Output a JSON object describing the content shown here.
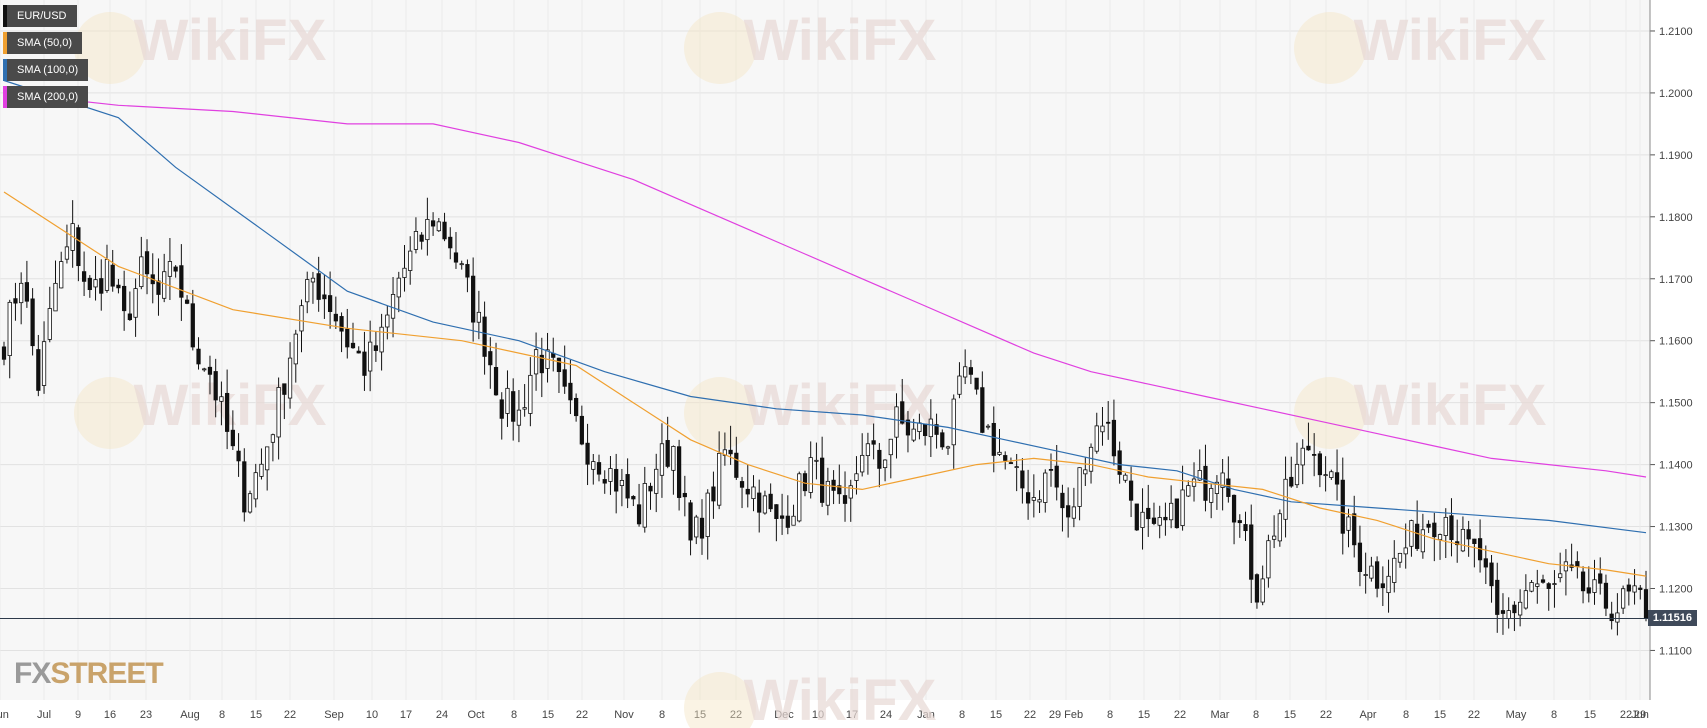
{
  "legend": {
    "symbol": "EUR/USD",
    "sma50": "SMA (50,0)",
    "sma100": "SMA (100,0)",
    "sma200": "SMA (200,0)"
  },
  "watermark": "WikiFX",
  "logo": {
    "fx": "FX",
    "street": "STREET"
  },
  "current_price_label": "1.11516",
  "colors": {
    "sma50": "#f0a030",
    "sma100": "#2f6fb0",
    "sma200": "#e040e0",
    "candle_up": "#ffffff",
    "candle_down": "#111111",
    "price_line": "#2d3a4a"
  },
  "chart_data": {
    "type": "candlestick",
    "title": "EUR/USD",
    "ylim": [
      1.102,
      1.215
    ],
    "y_ticks": [
      "1.1100",
      "1.1200",
      "1.1300",
      "1.1400",
      "1.1500",
      "1.1600",
      "1.1700",
      "1.1800",
      "1.1900",
      "1.2000",
      "1.2100"
    ],
    "x_ticks": [
      "Jun",
      "Jul",
      "9",
      "16",
      "23",
      "Aug",
      "8",
      "15",
      "22",
      "Sep",
      "10",
      "17",
      "24",
      "Oct",
      "8",
      "15",
      "22",
      "Nov",
      "8",
      "15",
      "22",
      "Dec",
      "10",
      "17",
      "24",
      "Jan",
      "8",
      "15",
      "22",
      "29 Feb",
      "8",
      "15",
      "22",
      "Mar",
      "8",
      "15",
      "22",
      "Apr",
      "8",
      "15",
      "22",
      "May",
      "8",
      "15",
      "22",
      "29",
      "Jun"
    ],
    "close_anchors": [
      [
        0,
        1.16
      ],
      [
        3,
        1.171
      ],
      [
        6,
        1.153
      ],
      [
        9,
        1.169
      ],
      [
        12,
        1.177
      ],
      [
        15,
        1.167
      ],
      [
        18,
        1.172
      ],
      [
        21,
        1.163
      ],
      [
        24,
        1.171
      ],
      [
        27,
        1.167
      ],
      [
        30,
        1.172
      ],
      [
        33,
        1.16
      ],
      [
        36,
        1.155
      ],
      [
        39,
        1.145
      ],
      [
        42,
        1.135
      ],
      [
        45,
        1.14
      ],
      [
        48,
        1.15
      ],
      [
        51,
        1.162
      ],
      [
        54,
        1.17
      ],
      [
        57,
        1.166
      ],
      [
        60,
        1.16
      ],
      [
        63,
        1.156
      ],
      [
        66,
        1.16
      ],
      [
        69,
        1.17
      ],
      [
        72,
        1.175
      ],
      [
        75,
        1.18
      ],
      [
        78,
        1.176
      ],
      [
        81,
        1.168
      ],
      [
        84,
        1.16
      ],
      [
        87,
        1.15
      ],
      [
        90,
        1.148
      ],
      [
        93,
        1.158
      ],
      [
        96,
        1.155
      ],
      [
        99,
        1.148
      ],
      [
        102,
        1.143
      ],
      [
        105,
        1.14
      ],
      [
        108,
        1.136
      ],
      [
        111,
        1.132
      ],
      [
        114,
        1.14
      ],
      [
        117,
        1.143
      ],
      [
        120,
        1.127
      ],
      [
        123,
        1.133
      ],
      [
        126,
        1.142
      ],
      [
        129,
        1.138
      ],
      [
        132,
        1.135
      ],
      [
        135,
        1.13
      ],
      [
        138,
        1.134
      ],
      [
        141,
        1.14
      ],
      [
        144,
        1.135
      ],
      [
        147,
        1.131
      ],
      [
        150,
        1.143
      ],
      [
        153,
        1.14
      ],
      [
        156,
        1.147
      ],
      [
        159,
        1.145
      ],
      [
        162,
        1.146
      ],
      [
        165,
        1.144
      ],
      [
        168,
        1.155
      ],
      [
        171,
        1.147
      ],
      [
        174,
        1.142
      ],
      [
        177,
        1.137
      ],
      [
        180,
        1.135
      ],
      [
        183,
        1.139
      ],
      [
        186,
        1.13
      ],
      [
        189,
        1.142
      ],
      [
        192,
        1.148
      ],
      [
        195,
        1.14
      ],
      [
        198,
        1.132
      ],
      [
        201,
        1.128
      ],
      [
        204,
        1.131
      ],
      [
        207,
        1.136
      ],
      [
        210,
        1.137
      ],
      [
        213,
        1.141
      ],
      [
        216,
        1.13
      ],
      [
        219,
        1.12
      ],
      [
        222,
        1.13
      ],
      [
        225,
        1.137
      ],
      [
        228,
        1.143
      ],
      [
        231,
        1.14
      ],
      [
        234,
        1.131
      ],
      [
        237,
        1.125
      ],
      [
        240,
        1.122
      ],
      [
        243,
        1.124
      ],
      [
        246,
        1.128
      ],
      [
        249,
        1.131
      ],
      [
        252,
        1.132
      ],
      [
        255,
        1.127
      ],
      [
        258,
        1.125
      ],
      [
        261,
        1.114
      ],
      [
        264,
        1.117
      ],
      [
        267,
        1.121
      ],
      [
        270,
        1.119
      ],
      [
        273,
        1.122
      ],
      [
        276,
        1.12
      ],
      [
        279,
        1.118
      ],
      [
        282,
        1.117
      ],
      [
        285,
        1.119
      ],
      [
        287,
        1.1152
      ]
    ],
    "sma50": [
      [
        0,
        1.184
      ],
      [
        20,
        1.172
      ],
      [
        40,
        1.165
      ],
      [
        60,
        1.162
      ],
      [
        80,
        1.16
      ],
      [
        100,
        1.156
      ],
      [
        110,
        1.15
      ],
      [
        120,
        1.144
      ],
      [
        130,
        1.14
      ],
      [
        140,
        1.137
      ],
      [
        150,
        1.136
      ],
      [
        160,
        1.138
      ],
      [
        170,
        1.14
      ],
      [
        180,
        1.141
      ],
      [
        190,
        1.14
      ],
      [
        200,
        1.138
      ],
      [
        210,
        1.137
      ],
      [
        220,
        1.136
      ],
      [
        230,
        1.133
      ],
      [
        240,
        1.131
      ],
      [
        250,
        1.128
      ],
      [
        260,
        1.126
      ],
      [
        270,
        1.124
      ],
      [
        280,
        1.123
      ],
      [
        287,
        1.122
      ]
    ],
    "sma100": [
      [
        0,
        1.202
      ],
      [
        20,
        1.196
      ],
      [
        30,
        1.188
      ],
      [
        45,
        1.178
      ],
      [
        60,
        1.168
      ],
      [
        75,
        1.163
      ],
      [
        90,
        1.16
      ],
      [
        105,
        1.155
      ],
      [
        120,
        1.151
      ],
      [
        135,
        1.149
      ],
      [
        150,
        1.148
      ],
      [
        165,
        1.146
      ],
      [
        175,
        1.144
      ],
      [
        185,
        1.142
      ],
      [
        195,
        1.14
      ],
      [
        205,
        1.139
      ],
      [
        215,
        1.136
      ],
      [
        225,
        1.134
      ],
      [
        240,
        1.133
      ],
      [
        255,
        1.132
      ],
      [
        270,
        1.131
      ],
      [
        287,
        1.129
      ]
    ],
    "sma200": [
      [
        0,
        1.2
      ],
      [
        20,
        1.198
      ],
      [
        40,
        1.197
      ],
      [
        60,
        1.195
      ],
      [
        75,
        1.195
      ],
      [
        90,
        1.192
      ],
      [
        100,
        1.189
      ],
      [
        110,
        1.186
      ],
      [
        120,
        1.182
      ],
      [
        130,
        1.178
      ],
      [
        140,
        1.174
      ],
      [
        150,
        1.17
      ],
      [
        160,
        1.166
      ],
      [
        170,
        1.162
      ],
      [
        180,
        1.158
      ],
      [
        190,
        1.155
      ],
      [
        200,
        1.153
      ],
      [
        210,
        1.151
      ],
      [
        220,
        1.149
      ],
      [
        230,
        1.147
      ],
      [
        240,
        1.145
      ],
      [
        250,
        1.143
      ],
      [
        260,
        1.141
      ],
      [
        270,
        1.14
      ],
      [
        280,
        1.139
      ],
      [
        287,
        1.138
      ]
    ],
    "last_close": 1.11516
  }
}
